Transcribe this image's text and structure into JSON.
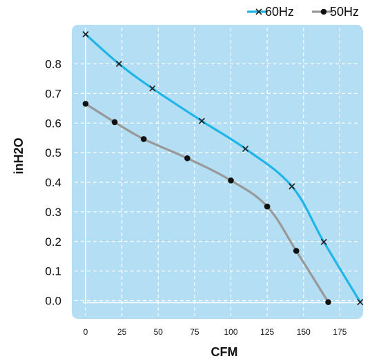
{
  "chart_data": {
    "type": "line",
    "xlabel": "CFM",
    "ylabel": "inH2O",
    "xlim": [
      -5,
      192
    ],
    "ylim": [
      -0.03,
      0.93
    ],
    "x_ticks": [
      0,
      25,
      50,
      75,
      100,
      125,
      150,
      175
    ],
    "y_ticks": [
      0.0,
      0.1,
      0.2,
      0.3,
      0.4,
      0.5,
      0.6,
      0.7,
      0.8
    ],
    "y_tick_labels": [
      "0.0",
      "0.1",
      "0.2",
      "0.3",
      "0.4",
      "0.5",
      "0.6",
      "0.7",
      "0.8"
    ],
    "grid": true,
    "legend_position": "top-right",
    "plot_background": "#b3def3",
    "series": [
      {
        "name": "60Hz",
        "marker": "x",
        "color": "#1fb5e8",
        "x": [
          0,
          23,
          46,
          80,
          110,
          142,
          164,
          189
        ],
        "y": [
          0.9,
          0.8,
          0.717,
          0.607,
          0.513,
          0.386,
          0.198,
          -0.005
        ]
      },
      {
        "name": "50Hz",
        "marker": "dot",
        "color": "#999999",
        "x": [
          0,
          20,
          40,
          70,
          100,
          125,
          145,
          167
        ],
        "y": [
          0.665,
          0.603,
          0.546,
          0.481,
          0.406,
          0.318,
          0.168,
          -0.005
        ]
      }
    ]
  }
}
